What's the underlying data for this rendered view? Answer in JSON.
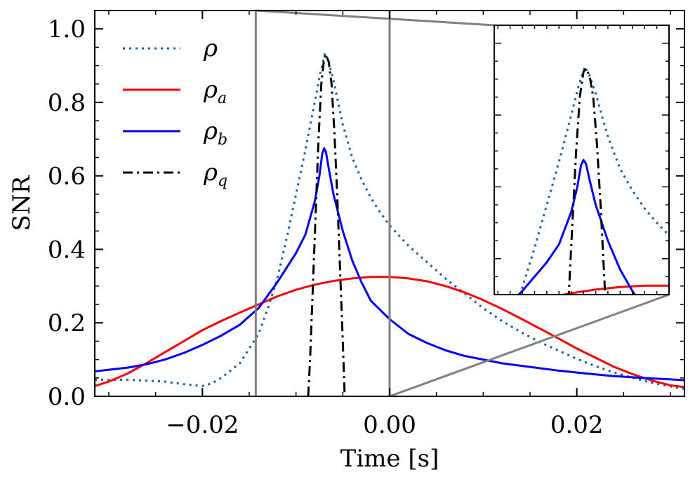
{
  "chart_data": {
    "type": "line",
    "title": "",
    "xlabel": "Time [s]",
    "ylabel": "SNR",
    "xlim": [
      -0.0315,
      0.0315
    ],
    "ylim": [
      0.0,
      1.05
    ],
    "xticks": [
      {
        "value": -0.02,
        "label": "−0.02"
      },
      {
        "value": 0.0,
        "label": "0.00"
      },
      {
        "value": 0.02,
        "label": "0.02"
      }
    ],
    "yticks": [
      {
        "value": 0.0,
        "label": "0.0"
      },
      {
        "value": 0.2,
        "label": "0.2"
      },
      {
        "value": 0.4,
        "label": "0.4"
      },
      {
        "value": 0.6,
        "label": "0.6"
      },
      {
        "value": 0.8,
        "label": "0.8"
      },
      {
        "value": 1.0,
        "label": "1.0"
      }
    ],
    "grid": false,
    "legend_position": "top-left",
    "series": [
      {
        "name": "ρ",
        "style": "dotted",
        "color": "#1a5fa0",
        "points": [
          [
            -0.0315,
            0.045
          ],
          [
            -0.028,
            0.045
          ],
          [
            -0.024,
            0.04
          ],
          [
            -0.022,
            0.033
          ],
          [
            -0.02,
            0.028
          ],
          [
            -0.019,
            0.035
          ],
          [
            -0.018,
            0.05
          ],
          [
            -0.016,
            0.09
          ],
          [
            -0.015,
            0.13
          ],
          [
            -0.014,
            0.17
          ],
          [
            -0.013,
            0.24
          ],
          [
            -0.012,
            0.32
          ],
          [
            -0.011,
            0.43
          ],
          [
            -0.01,
            0.55
          ],
          [
            -0.009,
            0.67
          ],
          [
            -0.008,
            0.8
          ],
          [
            -0.0074,
            0.88
          ],
          [
            -0.0069,
            0.935
          ],
          [
            -0.0065,
            0.91
          ],
          [
            -0.006,
            0.86
          ],
          [
            -0.005,
            0.74
          ],
          [
            -0.004,
            0.65
          ],
          [
            -0.003,
            0.59
          ],
          [
            -0.002,
            0.54
          ],
          [
            -0.001,
            0.5
          ],
          [
            0.0,
            0.465
          ],
          [
            0.002,
            0.41
          ],
          [
            0.004,
            0.365
          ],
          [
            0.006,
            0.32
          ],
          [
            0.008,
            0.28
          ],
          [
            0.01,
            0.24
          ],
          [
            0.012,
            0.205
          ],
          [
            0.014,
            0.175
          ],
          [
            0.016,
            0.148
          ],
          [
            0.018,
            0.125
          ],
          [
            0.02,
            0.102
          ],
          [
            0.022,
            0.082
          ],
          [
            0.024,
            0.065
          ],
          [
            0.026,
            0.05
          ],
          [
            0.028,
            0.037
          ],
          [
            0.03,
            0.027
          ],
          [
            0.0315,
            0.02
          ]
        ]
      },
      {
        "name": "ρa",
        "style": "solid",
        "color": "#ff0000",
        "points": [
          [
            -0.0315,
            0.028
          ],
          [
            -0.03,
            0.04
          ],
          [
            -0.028,
            0.062
          ],
          [
            -0.026,
            0.09
          ],
          [
            -0.024,
            0.12
          ],
          [
            -0.022,
            0.15
          ],
          [
            -0.02,
            0.18
          ],
          [
            -0.018,
            0.205
          ],
          [
            -0.016,
            0.228
          ],
          [
            -0.014,
            0.25
          ],
          [
            -0.012,
            0.272
          ],
          [
            -0.01,
            0.29
          ],
          [
            -0.008,
            0.304
          ],
          [
            -0.006,
            0.314
          ],
          [
            -0.004,
            0.321
          ],
          [
            -0.002,
            0.325
          ],
          [
            0.0,
            0.325
          ],
          [
            0.002,
            0.321
          ],
          [
            0.004,
            0.313
          ],
          [
            0.006,
            0.3
          ],
          [
            0.008,
            0.283
          ],
          [
            0.01,
            0.262
          ],
          [
            0.012,
            0.238
          ],
          [
            0.014,
            0.212
          ],
          [
            0.016,
            0.185
          ],
          [
            0.018,
            0.158
          ],
          [
            0.02,
            0.13
          ],
          [
            0.022,
            0.105
          ],
          [
            0.024,
            0.08
          ],
          [
            0.026,
            0.06
          ],
          [
            0.028,
            0.043
          ],
          [
            0.03,
            0.03
          ],
          [
            0.0315,
            0.025
          ]
        ]
      },
      {
        "name": "ρb",
        "style": "solid",
        "color": "#0000ff",
        "points": [
          [
            -0.0315,
            0.068
          ],
          [
            -0.028,
            0.078
          ],
          [
            -0.026,
            0.087
          ],
          [
            -0.024,
            0.1
          ],
          [
            -0.022,
            0.118
          ],
          [
            -0.02,
            0.14
          ],
          [
            -0.018,
            0.165
          ],
          [
            -0.016,
            0.195
          ],
          [
            -0.014,
            0.24
          ],
          [
            -0.012,
            0.31
          ],
          [
            -0.01,
            0.39
          ],
          [
            -0.009,
            0.44
          ],
          [
            -0.008,
            0.53
          ],
          [
            -0.0075,
            0.6
          ],
          [
            -0.0072,
            0.66
          ],
          [
            -0.007,
            0.675
          ],
          [
            -0.0068,
            0.665
          ],
          [
            -0.0065,
            0.62
          ],
          [
            -0.006,
            0.55
          ],
          [
            -0.005,
            0.45
          ],
          [
            -0.004,
            0.37
          ],
          [
            -0.003,
            0.31
          ],
          [
            -0.002,
            0.26
          ],
          [
            -0.001,
            0.235
          ],
          [
            0.0,
            0.21
          ],
          [
            0.002,
            0.17
          ],
          [
            0.004,
            0.145
          ],
          [
            0.006,
            0.125
          ],
          [
            0.008,
            0.11
          ],
          [
            0.01,
            0.1
          ],
          [
            0.012,
            0.09
          ],
          [
            0.015,
            0.08
          ],
          [
            0.018,
            0.07
          ],
          [
            0.021,
            0.062
          ],
          [
            0.024,
            0.055
          ],
          [
            0.027,
            0.05
          ],
          [
            0.03,
            0.046
          ],
          [
            0.0315,
            0.044
          ]
        ]
      },
      {
        "name": "ρq",
        "style": "dashdot",
        "color": "#000000",
        "points": [
          [
            -0.0087,
            0.0
          ],
          [
            -0.0085,
            0.1
          ],
          [
            -0.0082,
            0.3
          ],
          [
            -0.0079,
            0.5
          ],
          [
            -0.0076,
            0.7
          ],
          [
            -0.0073,
            0.85
          ],
          [
            -0.007,
            0.92
          ],
          [
            -0.0068,
            0.93
          ],
          [
            -0.0065,
            0.91
          ],
          [
            -0.0062,
            0.85
          ],
          [
            -0.0059,
            0.72
          ],
          [
            -0.0056,
            0.55
          ],
          [
            -0.0053,
            0.35
          ],
          [
            -0.005,
            0.15
          ],
          [
            -0.0048,
            0.0
          ]
        ]
      }
    ],
    "zoom_region": {
      "x": [
        -0.0143,
        0.0
      ],
      "y": [
        0.0,
        1.05
      ]
    },
    "inset": {
      "xlim": [
        -0.0143,
        0.0
      ],
      "ylim": [
        0.3,
        1.05
      ],
      "tick_labels": false
    }
  }
}
